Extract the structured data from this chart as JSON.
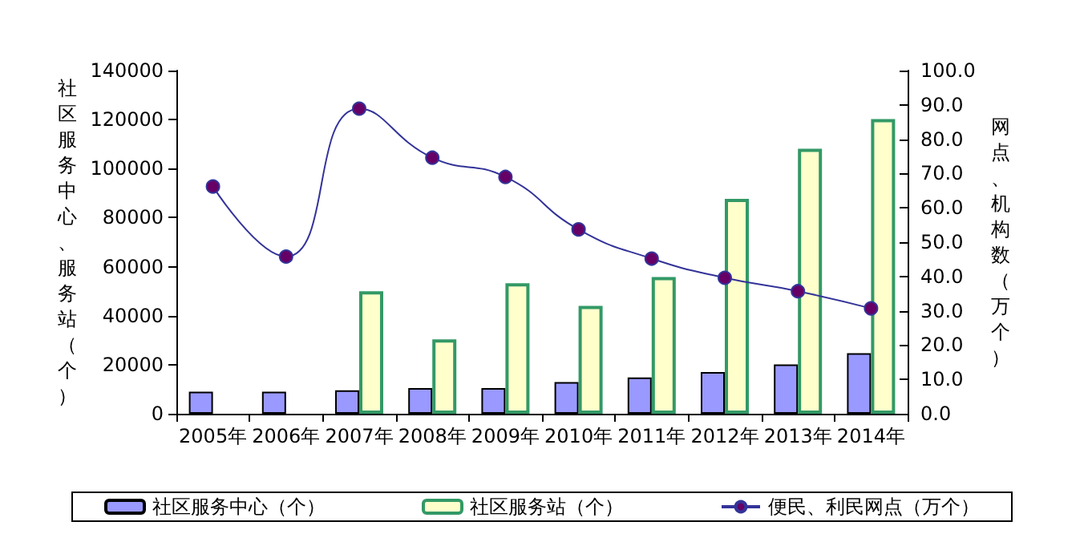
{
  "chart_data": {
    "type": "bar",
    "ylabel": "社区服务中心、服务站（个）",
    "y2label": "网点、机构数（万个）",
    "categories": [
      "2005年",
      "2006年",
      "2007年",
      "2008年",
      "2009年",
      "2010年",
      "2011年",
      "2012年",
      "2013年",
      "2014年"
    ],
    "series": [
      {
        "name": "社区服务中心（个）",
        "color": "#9999ff",
        "values": [
          9000,
          9000,
          9600,
          10500,
          10500,
          12900,
          14800,
          17000,
          20100,
          24700
        ]
      },
      {
        "name": "社区服务站（个）",
        "color": "#ffffcc",
        "values": [
          null,
          null,
          50000,
          30300,
          53200,
          44000,
          55800,
          87700,
          108100,
          120200
        ]
      },
      {
        "name": "便民、利民网点（万个）",
        "type": "line",
        "axis": "y2",
        "color": "#333399",
        "marker": "circle",
        "values": [
          66.2,
          45.8,
          88.9,
          74.6,
          69.0,
          53.7,
          45.2,
          39.6,
          35.7,
          30.7
        ]
      }
    ],
    "ylim": [
      0,
      140000
    ],
    "yticks": [
      0,
      20000,
      40000,
      60000,
      80000,
      100000,
      120000,
      140000
    ],
    "y2lim": [
      0,
      100
    ],
    "y2ticks": [
      {
        "value": 0,
        "label": "0.0"
      },
      {
        "value": 10,
        "label": "10.0"
      },
      {
        "value": 20,
        "label": "20.0"
      },
      {
        "value": 30,
        "label": "30.0"
      },
      {
        "value": 40,
        "label": "40.0"
      },
      {
        "value": 50,
        "label": "50.0"
      },
      {
        "value": 60,
        "label": "60.0"
      },
      {
        "value": 70,
        "label": "70.0"
      },
      {
        "value": 80,
        "label": "80.0"
      },
      {
        "value": 90,
        "label": "90.0"
      },
      {
        "value": 100,
        "label": "100.0"
      }
    ],
    "grid": false,
    "legend": "bottom"
  }
}
